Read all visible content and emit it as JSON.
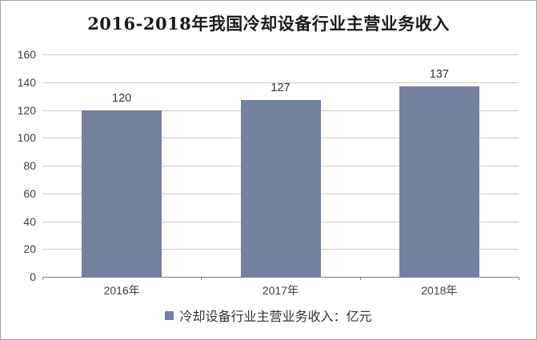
{
  "chart_data": {
    "type": "bar",
    "title": "2016-2018年我国冷却设备行业主营业务收入",
    "categories": [
      "2016年",
      "2017年",
      "2018年"
    ],
    "values": [
      120,
      127,
      137
    ],
    "legend": [
      "冷却设备行业主营业务收入：亿元"
    ],
    "legend_position": "bottom",
    "legend_marker": "square",
    "xlabel": "",
    "ylabel": "",
    "ylim": [
      0,
      160
    ],
    "yticks": [
      0,
      20,
      40,
      60,
      80,
      100,
      120,
      140,
      160
    ],
    "grid": true,
    "data_labels": true
  },
  "colors": {
    "bar_fill": "#7380A0",
    "gridline": "#c8c8c8",
    "axis_line": "#7f7f7f",
    "tick_text": "#404040",
    "value_text": "#333333",
    "title_text": "#1a1a1a",
    "frame_border": "#a3a3a3",
    "background": "#ffffff"
  }
}
